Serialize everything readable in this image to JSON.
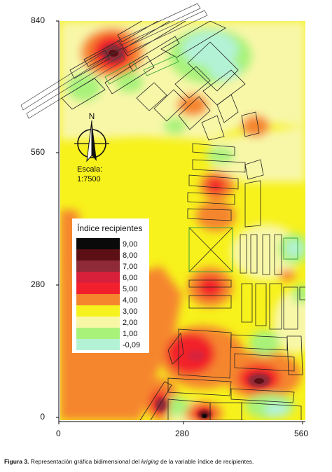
{
  "map": {
    "y_ticks": [
      "840",
      "560",
      "280",
      "0"
    ],
    "x_ticks": [
      "0",
      "280",
      "560"
    ],
    "north_label": "N",
    "scale_label": "Escala:",
    "scale_value": "1:7500"
  },
  "legend": {
    "title": "Índice recipientes",
    "entries": [
      {
        "label": "9,00",
        "color": "#0a0a0a"
      },
      {
        "label": "8,00",
        "color": "#5c0f14"
      },
      {
        "label": "7,00",
        "color": "#8f2b38"
      },
      {
        "label": "6,00",
        "color": "#d8203a"
      },
      {
        "label": "5,00",
        "color": "#f2202c"
      },
      {
        "label": "4,00",
        "color": "#f5862e"
      },
      {
        "label": "3,00",
        "color": "#f6f21e"
      },
      {
        "label": "2,00",
        "color": "#f8f7a6"
      },
      {
        "label": "1,00",
        "color": "#a8f27a"
      },
      {
        "label": "-0,09",
        "color": "#b4f2d6"
      }
    ]
  },
  "caption": {
    "prefix": "Figura 3.",
    "text_before": " Representación gráfica bidimensional del ",
    "italic": "kriging",
    "text_after": " de la variable índice de recipientes."
  }
}
